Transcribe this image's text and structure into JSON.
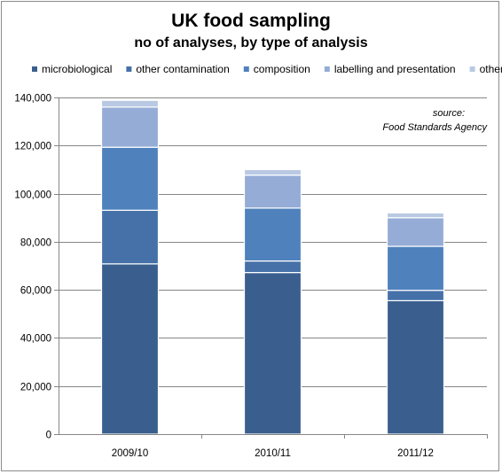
{
  "chart_data": {
    "type": "bar",
    "stacked": true,
    "title": "UK food sampling",
    "subtitle": "no of analyses, by type of analysis",
    "categories": [
      "2009/10",
      "2010/11",
      "2011/12"
    ],
    "series": [
      {
        "name": "microbiological",
        "color": "#3a5f8f",
        "values": [
          70800,
          67200,
          55500
        ]
      },
      {
        "name": "other contamination",
        "color": "#4671a8",
        "values": [
          22300,
          4800,
          4300
        ]
      },
      {
        "name": "composition",
        "color": "#4f81bd",
        "values": [
          26200,
          22000,
          18300
        ]
      },
      {
        "name": "labelling and presentation",
        "color": "#95acd6",
        "values": [
          16700,
          13700,
          11900
        ]
      },
      {
        "name": "other",
        "color": "#b9c9e3",
        "values": [
          2800,
          2300,
          2000
        ]
      }
    ],
    "y_ticks": [
      "0",
      "20,000",
      "40,000",
      "60,000",
      "80,000",
      "100,000",
      "120,000",
      "140,000"
    ],
    "ylim": [
      0,
      140000
    ],
    "grid": true,
    "legend_position": "top",
    "annotation": {
      "line1": "source:",
      "line2": "Food Standards Agency"
    }
  }
}
